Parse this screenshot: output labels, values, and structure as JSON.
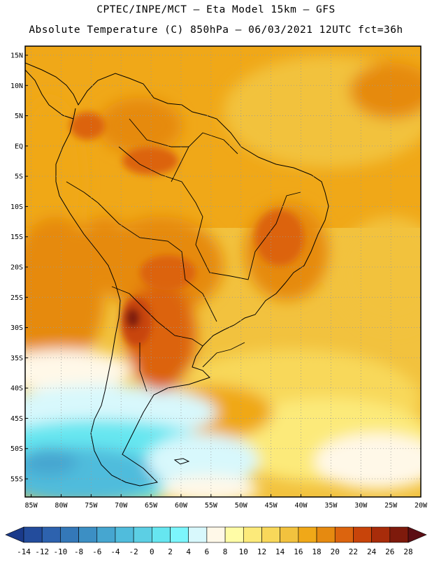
{
  "header": {
    "line1": "CPTEC/INPE/MCT –  Eta Model 15km – GFS",
    "line2": "Absolute Temperature (C) 850hPa – 06/03/2021 12UTC fct=36h"
  },
  "map": {
    "lat_labels": [
      "15N",
      "10N",
      "5N",
      "EQ",
      "5S",
      "10S",
      "15S",
      "20S",
      "25S",
      "30S",
      "35S",
      "40S",
      "45S",
      "50S",
      "55S"
    ],
    "lon_labels": [
      "85W",
      "80W",
      "75W",
      "70W",
      "65W",
      "60W",
      "55W",
      "50W",
      "45W",
      "40W",
      "35W",
      "30W",
      "25W",
      "20W"
    ],
    "lat_range": [
      -58,
      16.5
    ],
    "lon_range": [
      -86,
      -20
    ]
  },
  "colorbar": {
    "labels": [
      "-14",
      "-12",
      "-10",
      "-8",
      "-6",
      "-4",
      "-2",
      "0",
      "2",
      "4",
      "6",
      "8",
      "10",
      "12",
      "14",
      "16",
      "18",
      "20",
      "22",
      "24",
      "26",
      "28"
    ],
    "colors": [
      "#1a3a8a",
      "#234c9c",
      "#2d62ae",
      "#3478b8",
      "#3c8fc4",
      "#46a6d0",
      "#50bcdc",
      "#5ccfe4",
      "#66e6f0",
      "#7cf6fc",
      "#d8f8fc",
      "#fff8e8",
      "#fffca6",
      "#fcea7a",
      "#f8d85a",
      "#f2c23e",
      "#f0a818",
      "#e68a10",
      "#dc640e",
      "#c8440a",
      "#a82c0a",
      "#7e1a0c",
      "#5c0e14"
    ]
  }
}
